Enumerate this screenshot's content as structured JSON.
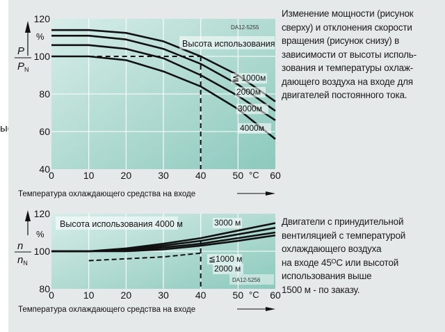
{
  "page_fragment": "ые",
  "top_description": "Изменение мощности (рисунок\nсверху) и отклонения скорости\nвращения (рисунок снизу) в\nзависимости от высоты исполь-\nзования и температуры охлаж-\nдающего воздуха на входе для\nдвигателей постоянного тока.",
  "bottom_description": "Двигатели с принудительной\nвентиляцией с температурой\nохлаждающего воздуха\nна входе 45ᴼC или высотой\nиспользования выше\n1500 м - по заказу.",
  "colors": {
    "panel_bg": "#e6e9ea",
    "plot_bg_light": "#d7ede8",
    "plot_bg_dark": "#8cc9bd",
    "curve": "#111111"
  },
  "chart_data": [
    {
      "type": "line",
      "id_code": "DA12-5255",
      "ylabel_num": "P",
      "ylabel_den": "P",
      "ylabel_den_sub": "N",
      "y_unit": "%",
      "xlabel": "Температура охлаждающего средства на входе",
      "x_unit": "°C",
      "xlim": [
        0,
        60
      ],
      "ylim": [
        40,
        120
      ],
      "x_ticks": [
        0,
        10,
        20,
        30,
        40,
        50,
        60
      ],
      "y_ticks": [
        40,
        60,
        80,
        100,
        120
      ],
      "annotation_title": "Высота использования",
      "reference": {
        "y": 100,
        "x_to": 40
      },
      "series": [
        {
          "name": "≦ 1000м",
          "x": [
            0,
            10,
            20,
            30,
            40,
            50,
            60
          ],
          "y": [
            114,
            114,
            112.5,
            108,
            100,
            90,
            76
          ]
        },
        {
          "name": "2000м",
          "x": [
            0,
            10,
            20,
            30,
            40,
            50,
            60
          ],
          "y": [
            111,
            111,
            109,
            104,
            96,
            85,
            71
          ]
        },
        {
          "name": "3000м",
          "x": [
            0,
            10,
            20,
            30,
            40,
            50,
            60
          ],
          "y": [
            106,
            106,
            104,
            99,
            90,
            79,
            66
          ]
        },
        {
          "name": "4000м",
          "x": [
            0,
            10,
            20,
            30,
            40,
            50,
            60
          ],
          "y": [
            100,
            100,
            98,
            92,
            84,
            72,
            56
          ]
        }
      ]
    },
    {
      "type": "line",
      "id_code": "DA12-5256",
      "ylabel_num": "n",
      "ylabel_den": "n",
      "ylabel_den_sub": "N",
      "y_unit": "%",
      "xlabel": "Температура охлаждающего средства на входе",
      "x_unit": "°C",
      "xlim": [
        0,
        60
      ],
      "ylim": [
        80,
        120
      ],
      "x_ticks": [
        0,
        10,
        20,
        30,
        40,
        50,
        60
      ],
      "y_ticks": [
        80,
        100,
        120
      ],
      "annotation_title": "Высота использования 4000 м",
      "series": [
        {
          "name": "Высота использования 4000 м",
          "x": [
            0,
            10,
            20,
            30,
            40,
            50,
            60
          ],
          "y": [
            100,
            100,
            101.5,
            104,
            107,
            111,
            115
          ]
        },
        {
          "name": "3000 м",
          "x": [
            0,
            10,
            20,
            30,
            40,
            50,
            60
          ],
          "y": [
            100,
            100,
            101,
            103,
            105.5,
            109,
            112.5
          ]
        },
        {
          "name": "≦1000 м",
          "x": [
            0,
            10,
            20,
            30,
            40,
            50,
            60
          ],
          "y": [
            100,
            100,
            100.5,
            102,
            104,
            107,
            110
          ]
        },
        {
          "name": "2000 м",
          "x": [
            0,
            10,
            20,
            30,
            40,
            50,
            60
          ],
          "y": [
            100,
            100,
            100,
            101,
            103,
            105.5,
            108.5
          ]
        },
        {
          "name": "dashed",
          "x": [
            10,
            20,
            30,
            40
          ],
          "y": [
            95,
            96,
            97,
            99
          ]
        }
      ],
      "reference": {
        "x": 40
      }
    }
  ]
}
